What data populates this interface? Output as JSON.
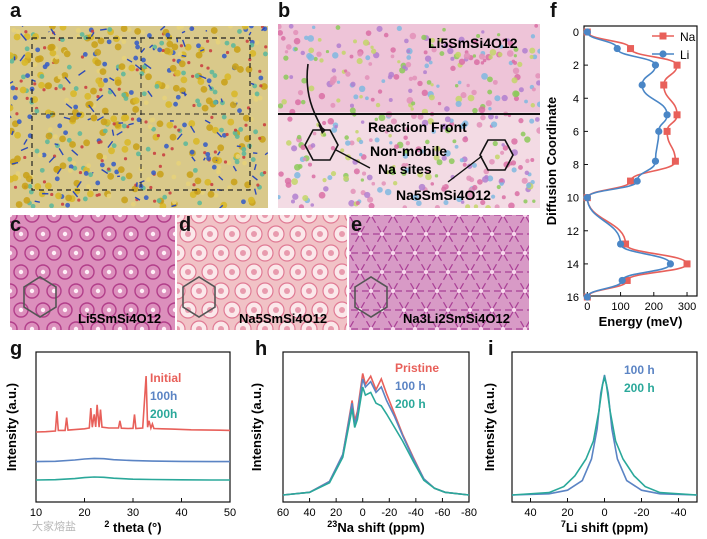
{
  "panels": {
    "a": {
      "label": "a"
    },
    "b": {
      "label": "b",
      "top_material": "Li5SmSi4O12",
      "front_label": "Reaction Front",
      "sites_label_1": "Non-mobile",
      "sites_label_2": "Na sites",
      "bottom_material": "Na5SmSi4O12"
    },
    "c": {
      "label": "c",
      "material": "Li5SmSi4O12"
    },
    "d": {
      "label": "d",
      "material": "Na5SmSi4O12"
    },
    "e": {
      "label": "e",
      "material": "Na3Li2SmSi4O12"
    },
    "f": {
      "label": "f"
    },
    "g": {
      "label": "g"
    },
    "h": {
      "label": "h"
    },
    "i": {
      "label": "i"
    }
  },
  "watermark": "大家熔盐",
  "colors": {
    "na_series": "#e8605a",
    "li_series": "#4a86c6",
    "initial": "#e8605a",
    "h100": "#5b84c4",
    "h200": "#2aa89a",
    "pink_bg": "#e6a6c8"
  },
  "chart_data": [
    {
      "panel": "f",
      "type": "line",
      "xlabel": "Energy (meV)",
      "ylabel": "Diffusion Coordinate",
      "xlim": [
        -10,
        330
      ],
      "ylim": [
        0,
        16.3
      ],
      "y_inverted": true,
      "xticks": [
        0,
        100,
        200,
        300
      ],
      "yticks": [
        0,
        2,
        4,
        6,
        8,
        10,
        12,
        14,
        16
      ],
      "legend": "top-right",
      "series": [
        {
          "name": "Na",
          "marker": "square",
          "color": "#e8605a",
          "x": [
            0,
            130,
            270,
            230,
            270,
            240,
            265,
            130,
            0,
            115,
            300,
            120,
            0
          ],
          "y": [
            0,
            1,
            2,
            3.2,
            5,
            6,
            7.8,
            9,
            10,
            12.8,
            14,
            15,
            16
          ]
        },
        {
          "name": "Li",
          "marker": "circle",
          "color": "#4a86c6",
          "x": [
            0,
            90,
            205,
            165,
            240,
            215,
            205,
            150,
            0,
            100,
            250,
            105,
            0
          ],
          "y": [
            0,
            1,
            2,
            3.2,
            5,
            6,
            7.8,
            9,
            10,
            12.8,
            14,
            15,
            16
          ]
        }
      ]
    },
    {
      "panel": "g",
      "type": "line",
      "xlabel": "2 theta (°)",
      "ylabel": "Intensity (a.u.)",
      "xlim": [
        10,
        50
      ],
      "xticks": [
        10,
        20,
        30,
        40,
        50
      ],
      "series": [
        {
          "name": "Initial",
          "color": "#e8605a",
          "x": [
            10,
            12,
            14,
            14.3,
            14.6,
            16,
            16.3,
            16.6,
            18,
            20,
            21,
            21.3,
            21.6,
            22,
            22.3,
            22.6,
            23,
            23.3,
            23.6,
            25,
            27,
            27.3,
            27.6,
            29,
            30,
            30.3,
            30.6,
            32,
            32.7,
            33,
            33.3,
            33.7,
            34,
            34.3,
            36,
            38,
            40,
            42,
            44,
            46,
            48,
            50
          ],
          "y": [
            5,
            5.2,
            5.6,
            18,
            6,
            6,
            14,
            6.2,
            6.5,
            7,
            7.5,
            20,
            8,
            16,
            8.2,
            22,
            8,
            19,
            8,
            7.5,
            7.5,
            12,
            7.4,
            7.2,
            7.3,
            16,
            7.2,
            7.5,
            40,
            8,
            12,
            7.4,
            10,
            7.2,
            7,
            6.8,
            6.6,
            6.4,
            6.3,
            6.2,
            6.1,
            6
          ]
        },
        {
          "name": "100h",
          "color": "#5b84c4",
          "x": [
            10,
            14,
            18,
            20,
            22,
            24,
            26,
            30,
            34,
            40,
            46,
            50
          ],
          "y": [
            4,
            4.2,
            5,
            5.6,
            6,
            5.8,
            5.2,
            4.6,
            4.3,
            4.1,
            4,
            4
          ]
        },
        {
          "name": "200h",
          "color": "#2aa89a",
          "x": [
            10,
            14,
            18,
            20,
            22,
            24,
            26,
            30,
            34,
            40,
            46,
            50
          ],
          "y": [
            2.5,
            2.7,
            3.4,
            4,
            4.4,
            4.2,
            3.6,
            3,
            2.8,
            2.6,
            2.5,
            2.5
          ]
        }
      ]
    },
    {
      "panel": "h",
      "type": "line",
      "xlabel": "23Na shift (ppm)",
      "ylabel": "Intensity (a.u.)",
      "xlim": [
        60,
        -80
      ],
      "xticks": [
        60,
        40,
        20,
        0,
        -20,
        -40,
        -60,
        -80
      ],
      "series": [
        {
          "name": "Pristine",
          "color": "#e8605a",
          "x": [
            60,
            40,
            25,
            15,
            8,
            6,
            4,
            0,
            -2,
            -6,
            -10,
            -14,
            -18,
            -24,
            -30,
            -38,
            -46,
            -54,
            -62,
            -80
          ],
          "y": [
            0,
            0.02,
            0.1,
            0.3,
            0.7,
            0.55,
            0.62,
            0.9,
            0.82,
            0.88,
            0.78,
            0.86,
            0.75,
            0.6,
            0.45,
            0.28,
            0.12,
            0.05,
            0.02,
            0
          ]
        },
        {
          "name": "100 h",
          "color": "#5b84c4",
          "x": [
            60,
            40,
            25,
            15,
            8,
            6,
            4,
            0,
            -2,
            -6,
            -10,
            -14,
            -18,
            -24,
            -30,
            -38,
            -46,
            -54,
            -62,
            -80
          ],
          "y": [
            0,
            0.02,
            0.1,
            0.3,
            0.68,
            0.52,
            0.6,
            0.86,
            0.8,
            0.84,
            0.76,
            0.8,
            0.7,
            0.58,
            0.44,
            0.27,
            0.12,
            0.05,
            0.02,
            0
          ]
        },
        {
          "name": "200 h",
          "color": "#2aa89a",
          "x": [
            60,
            40,
            25,
            15,
            8,
            6,
            4,
            0,
            -2,
            -6,
            -10,
            -14,
            -18,
            -24,
            -30,
            -38,
            -46,
            -54,
            -62,
            -80
          ],
          "y": [
            0,
            0.02,
            0.09,
            0.28,
            0.64,
            0.5,
            0.56,
            0.8,
            0.74,
            0.76,
            0.68,
            0.66,
            0.6,
            0.5,
            0.4,
            0.25,
            0.11,
            0.05,
            0.02,
            0
          ]
        }
      ]
    },
    {
      "panel": "i",
      "type": "line",
      "xlabel": "7Li shift (ppm)",
      "ylabel": "Intensity (a.u.)",
      "xlim": [
        50,
        -50
      ],
      "xticks": [
        40,
        20,
        0,
        -20,
        -40
      ],
      "series": [
        {
          "name": "100 h",
          "color": "#5b84c4",
          "x": [
            50,
            30,
            20,
            12,
            7,
            4,
            2,
            0,
            -2,
            -4,
            -7,
            -12,
            -20,
            -30,
            -50
          ],
          "y": [
            0,
            0.01,
            0.04,
            0.12,
            0.3,
            0.55,
            0.85,
            1.0,
            0.85,
            0.55,
            0.3,
            0.12,
            0.04,
            0.01,
            0
          ]
        },
        {
          "name": "200 h",
          "color": "#2aa89a",
          "x": [
            50,
            30,
            22,
            16,
            10,
            6,
            3,
            1,
            0,
            -1,
            -3,
            -6,
            -10,
            -16,
            -22,
            -30,
            -50
          ],
          "y": [
            0,
            0.02,
            0.07,
            0.16,
            0.3,
            0.45,
            0.7,
            0.92,
            0.98,
            0.92,
            0.7,
            0.45,
            0.3,
            0.16,
            0.07,
            0.02,
            0
          ]
        }
      ]
    }
  ]
}
